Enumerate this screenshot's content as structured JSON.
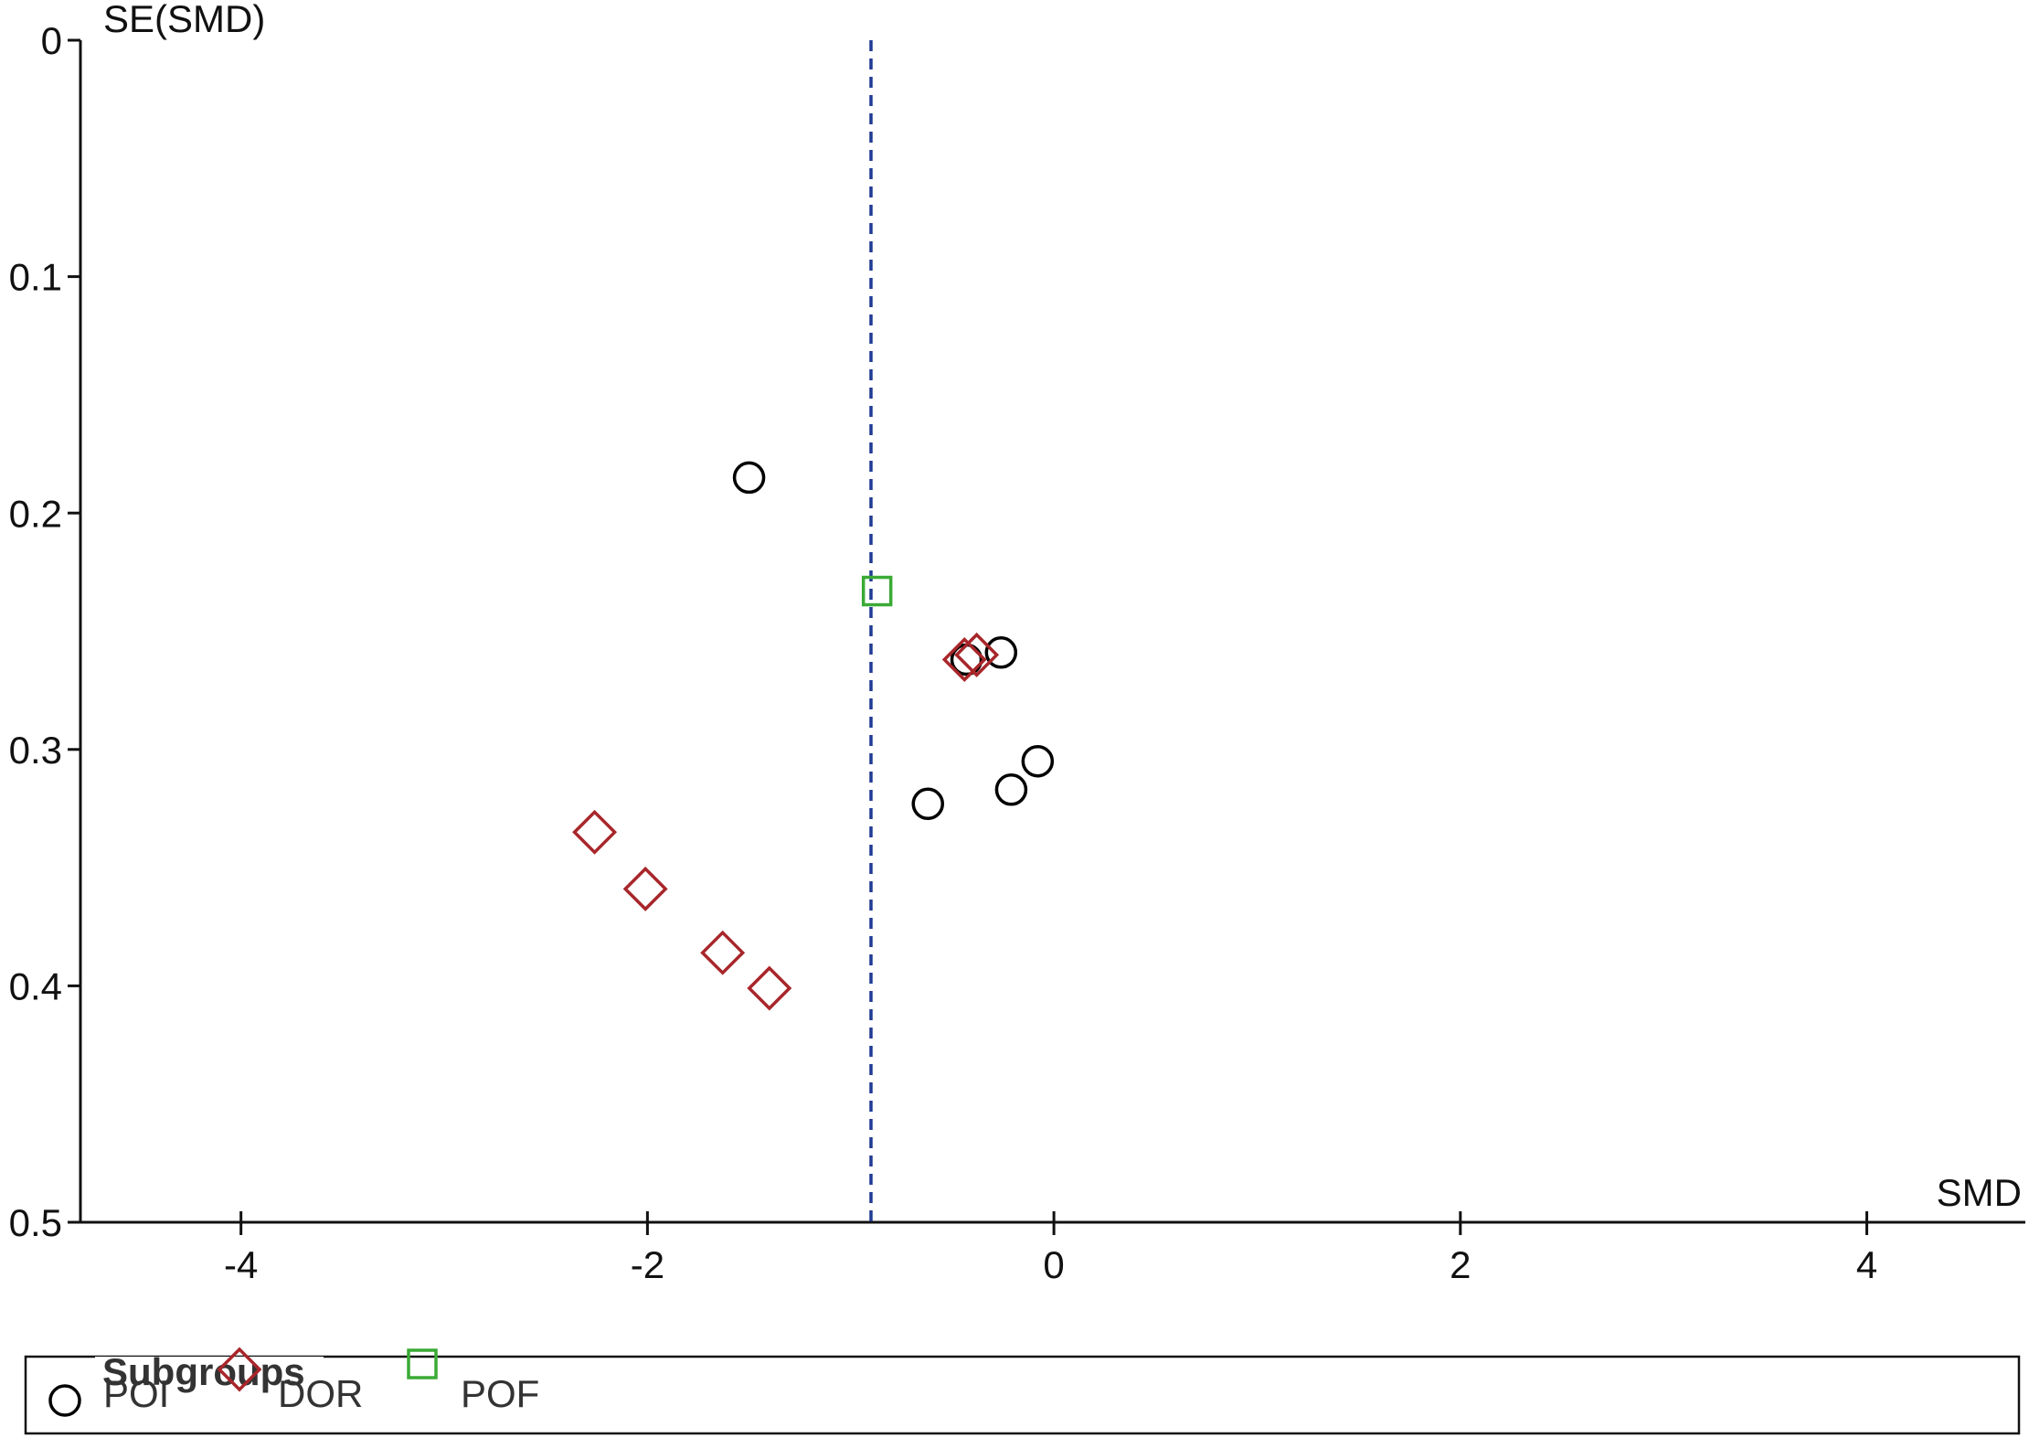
{
  "chart_data": {
    "type": "scatter",
    "y_label": "SE(SMD)",
    "x_label": "SMD",
    "xlim": [
      -4.79,
      4.78
    ],
    "xticks": [
      -4,
      -2,
      0,
      2,
      4
    ],
    "ylim": [
      0,
      0.5
    ],
    "yticks": [
      0,
      0.1,
      0.2,
      0.3,
      0.4,
      0.5
    ],
    "y_inverted": true,
    "reference_line": -0.9,
    "reference_color": "#1f3a93",
    "legend_title": "Subgroups",
    "legend_position": "bottom",
    "series": [
      {
        "name": "POI",
        "color": "#000000",
        "marker": "circle",
        "x": [
          -1.5,
          -0.43,
          -0.26,
          -0.08,
          -0.21,
          -0.62
        ],
        "values": [
          0.185,
          0.262,
          0.259,
          0.305,
          0.317,
          0.323
        ]
      },
      {
        "name": "DOR",
        "color": "#a8262a",
        "marker": "diamond",
        "x": [
          -0.44,
          -0.38,
          -2.26,
          -2.01,
          -1.63,
          -1.4
        ],
        "values": [
          0.262,
          0.26,
          0.335,
          0.359,
          0.386,
          0.401
        ]
      },
      {
        "name": "POF",
        "color": "#3aaa35",
        "marker": "square",
        "x": [
          -0.87
        ],
        "values": [
          0.233
        ]
      }
    ]
  }
}
